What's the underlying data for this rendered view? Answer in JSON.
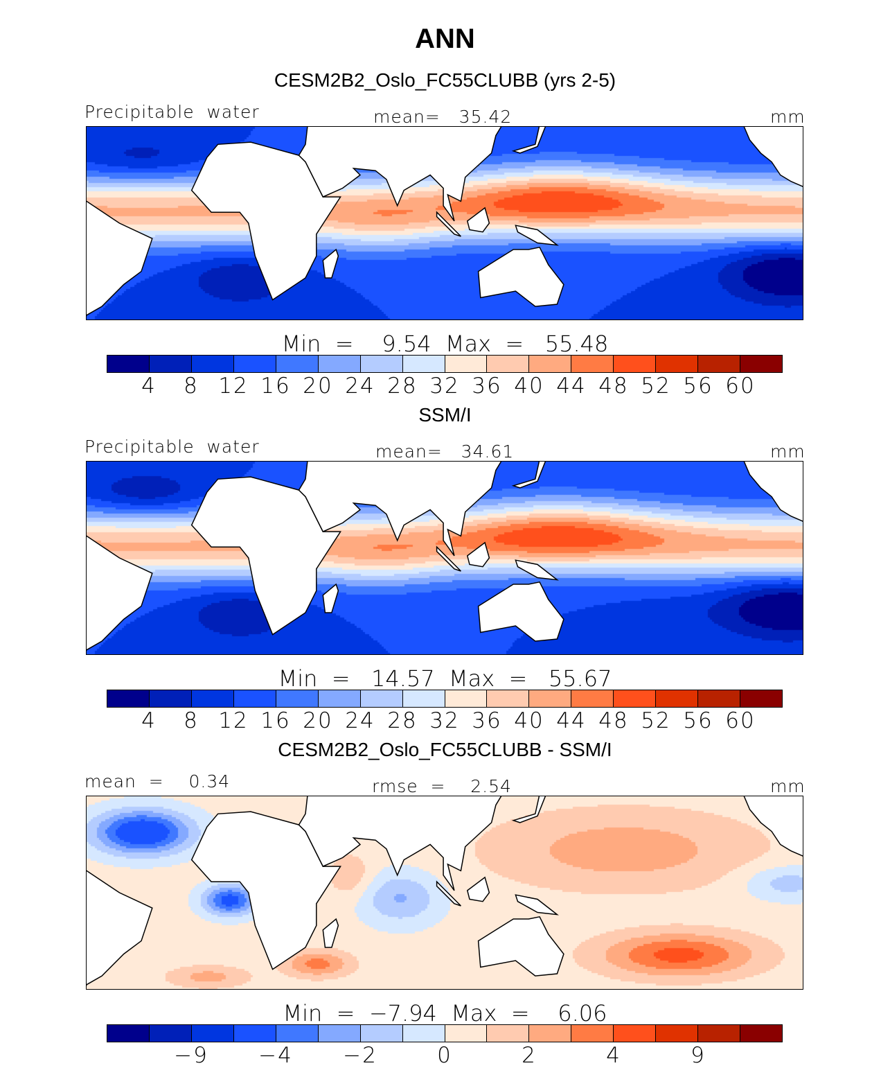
{
  "title": "ANN",
  "colors": {
    "levels": [
      "#00008c",
      "#0020b8",
      "#0036e0",
      "#1a52ff",
      "#4078ff",
      "#84a9ff",
      "#b4ccff",
      "#d6e8ff",
      "#ffead8",
      "#ffcbb0",
      "#ffaa80",
      "#ff7b44",
      "#ff501c",
      "#e03200",
      "#b82200",
      "#8a0000"
    ]
  },
  "panels": [
    {
      "subtitle": "CESM2B2_Oslo_FC55CLUBB (yrs 2-5)",
      "left": "Precipitable  water",
      "center": "mean=   35.42",
      "right": "mm",
      "minmax": "Min  =    9.54  Max  =   55.48",
      "ticks": [
        "4",
        "8",
        "12",
        "16",
        "20",
        "24",
        "28",
        "32",
        "36",
        "40",
        "44",
        "48",
        "52",
        "56",
        "60"
      ]
    },
    {
      "subtitle": "SSM/I",
      "left": "Precipitable  water",
      "center": "mean=   34.61",
      "right": "mm",
      "minmax": "Min  =   14.57  Max  =   55.67",
      "ticks": [
        "4",
        "8",
        "12",
        "16",
        "20",
        "24",
        "28",
        "32",
        "36",
        "40",
        "44",
        "48",
        "52",
        "56",
        "60"
      ]
    },
    {
      "subtitle": "CESM2B2_Oslo_FC55CLUBB - SSM/I",
      "left": "mean  =    0.34",
      "center": "rmse  =    2.54",
      "right": "mm",
      "minmax": "Min  =  −7.94  Max  =    6.06",
      "ticks": [
        "",
        "−9",
        "",
        "−4",
        "",
        "−2",
        "",
        "0",
        "",
        "2",
        "",
        "4",
        "",
        "9",
        ""
      ]
    }
  ]
}
